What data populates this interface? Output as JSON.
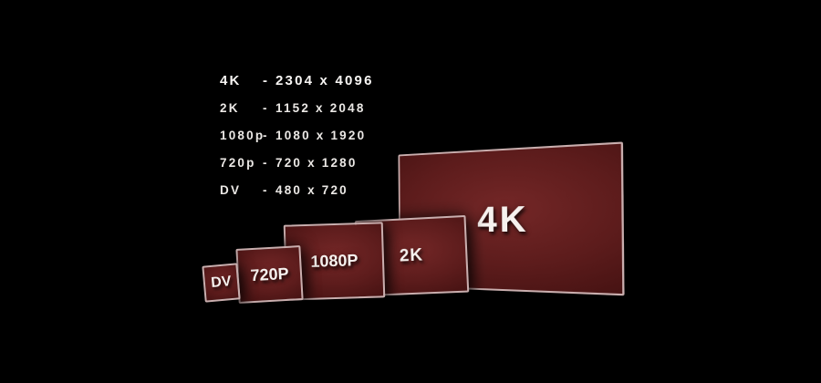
{
  "colors": {
    "background": "#000000",
    "screen_border": "#c9aeae",
    "screen_fill_center": "#742727",
    "screen_fill_edge": "#2e0909",
    "text": "#f6f1ee"
  },
  "legend": {
    "rows": [
      {
        "label": "4K",
        "dash": "-",
        "value": "2304 x 4096"
      },
      {
        "label": "2K",
        "dash": "-",
        "value": "1152 x 2048"
      },
      {
        "label": "1080p",
        "dash": "-",
        "value": "1080 x 1920"
      },
      {
        "label": "720p",
        "dash": "-",
        "value": "720 x 1280"
      },
      {
        "label": "DV",
        "dash": "-",
        "value": "480 x 720"
      }
    ]
  },
  "screens": [
    {
      "id": "dv",
      "label": "DV"
    },
    {
      "id": "720p",
      "label": "720P"
    },
    {
      "id": "1080p",
      "label": "1080P"
    },
    {
      "id": "2k",
      "label": "2K"
    },
    {
      "id": "4k",
      "label": "4K"
    }
  ]
}
